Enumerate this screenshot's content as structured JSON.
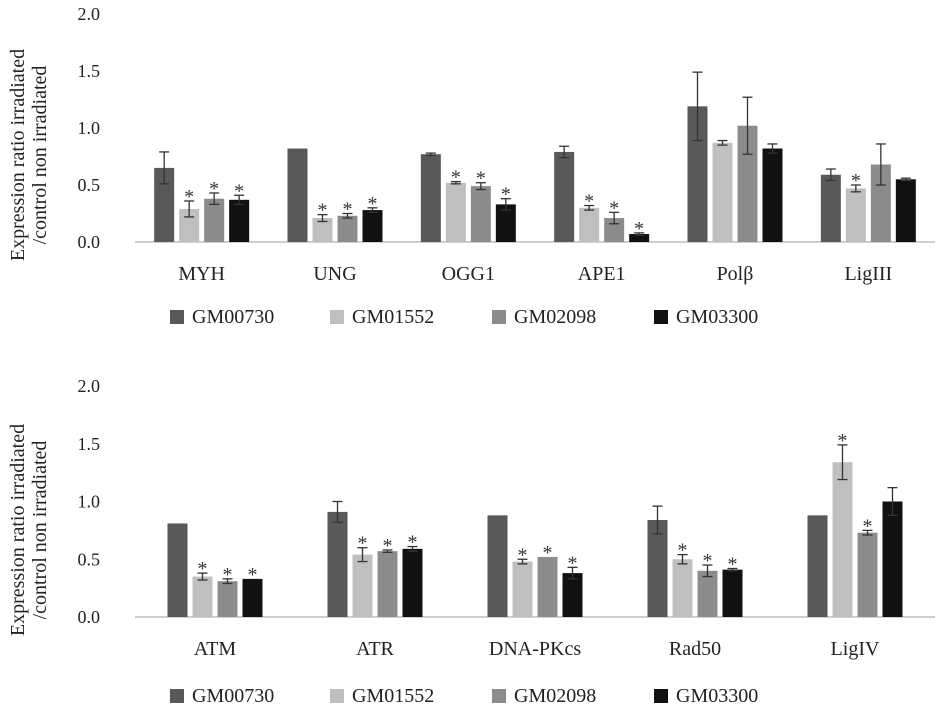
{
  "chart_data": [
    {
      "type": "bar",
      "ylabel": "Expression ratio irradiated\n/control non irradiated",
      "ylabel_lines": [
        "Expression ratio irradiated",
        "/control non irradiated"
      ],
      "ylim": [
        0,
        2
      ],
      "yticks": [
        "0.0",
        "0.5",
        "1.0",
        "1.5",
        "2.0"
      ],
      "categories": [
        "MYH",
        "UNG",
        "OGG1",
        "APE1",
        "Polβ",
        "LigIII"
      ],
      "series": [
        {
          "name": "GM00730",
          "color": "#595959",
          "values": [
            0.65,
            0.82,
            0.77,
            0.79,
            1.19,
            0.59
          ],
          "errors": [
            0.14,
            0.0,
            0.01,
            0.05,
            0.3,
            0.05
          ],
          "sig": [
            false,
            false,
            false,
            false,
            false,
            false
          ]
        },
        {
          "name": "GM01552",
          "color": "#bfbfbf",
          "values": [
            0.29,
            0.21,
            0.52,
            0.3,
            0.87,
            0.47
          ],
          "errors": [
            0.07,
            0.03,
            0.01,
            0.02,
            0.02,
            0.03
          ],
          "sig": [
            true,
            true,
            true,
            true,
            false,
            true
          ]
        },
        {
          "name": "GM02098",
          "color": "#8c8c8c",
          "values": [
            0.38,
            0.23,
            0.49,
            0.21,
            1.02,
            0.68
          ],
          "errors": [
            0.05,
            0.02,
            0.03,
            0.05,
            0.25,
            0.18
          ],
          "sig": [
            true,
            true,
            true,
            true,
            false,
            false
          ]
        },
        {
          "name": "GM03300",
          "color": "#111111",
          "values": [
            0.37,
            0.28,
            0.33,
            0.07,
            0.82,
            0.55
          ],
          "errors": [
            0.04,
            0.02,
            0.05,
            0.01,
            0.04,
            0.01
          ],
          "sig": [
            true,
            true,
            true,
            true,
            false,
            false
          ]
        }
      ],
      "legend": [
        "GM00730",
        "GM01552",
        "GM02098",
        "GM03300"
      ]
    },
    {
      "type": "bar",
      "ylabel": "Expression ratio irradiated\n/control non irradiated",
      "ylabel_lines": [
        "Expression ratio irradiated",
        "/control non irradiated"
      ],
      "ylim": [
        0,
        2
      ],
      "yticks": [
        "0.0",
        "0.5",
        "1.0",
        "1.5",
        "2.0"
      ],
      "categories": [
        "ATM",
        "ATR",
        "DNA-PKcs",
        "Rad50",
        "LigIV"
      ],
      "series": [
        {
          "name": "GM00730",
          "color": "#595959",
          "values": [
            0.81,
            0.91,
            0.88,
            0.84,
            0.88
          ],
          "errors": [
            0.0,
            0.09,
            0.0,
            0.12,
            0.0
          ],
          "sig": [
            false,
            false,
            false,
            false,
            false
          ]
        },
        {
          "name": "GM01552",
          "color": "#bfbfbf",
          "values": [
            0.35,
            0.54,
            0.48,
            0.5,
            1.34
          ],
          "errors": [
            0.03,
            0.06,
            0.02,
            0.04,
            0.15
          ],
          "sig": [
            true,
            true,
            true,
            true,
            true
          ]
        },
        {
          "name": "GM02098",
          "color": "#8c8c8c",
          "values": [
            0.31,
            0.57,
            0.52,
            0.4,
            0.73
          ],
          "errors": [
            0.02,
            0.01,
            0.0,
            0.05,
            0.02
          ],
          "sig": [
            true,
            true,
            true,
            true,
            true
          ]
        },
        {
          "name": "GM03300",
          "color": "#111111",
          "values": [
            0.33,
            0.59,
            0.38,
            0.41,
            1.0
          ],
          "errors": [
            0.0,
            0.02,
            0.05,
            0.01,
            0.12
          ],
          "sig": [
            true,
            true,
            true,
            true,
            false
          ]
        }
      ],
      "legend": [
        "GM00730",
        "GM01552",
        "GM02098",
        "GM03300"
      ]
    }
  ]
}
